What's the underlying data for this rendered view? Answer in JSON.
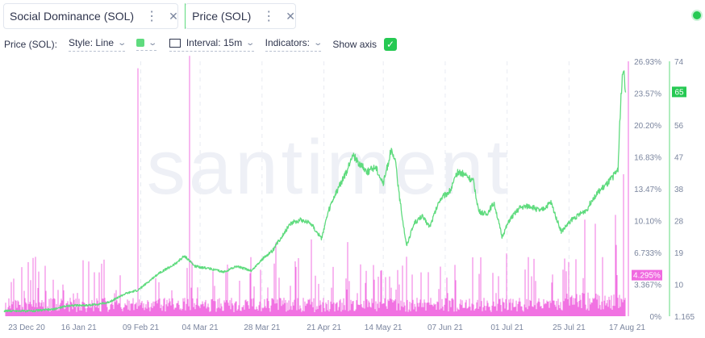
{
  "colors": {
    "social": "#f06ae0",
    "price": "#5fdb7e",
    "badge_social": "#f06ae0",
    "badge_price": "#26c953",
    "grid": "#e8ebf2",
    "text": "#2f354d",
    "muted": "#7a859e"
  },
  "metrics": [
    {
      "label": "Social Dominance (SOL)",
      "color": "#f06ae0",
      "menu_icon": "more-icon",
      "close_icon": "close-icon"
    },
    {
      "label": "Price (SOL)",
      "color": "#5fdb7e",
      "menu_icon": "more-icon",
      "close_icon": "close-icon"
    }
  ],
  "toolbar": {
    "metric_label": "Price (SOL):",
    "style_label": "Style: Line",
    "interval_label": "Interval: 15m",
    "indicators_label": "Indicators:",
    "show_axis_label": "Show axis",
    "show_axis_checked": true
  },
  "watermark": "santiment",
  "chart_data": {
    "type": "line",
    "x_ticks": [
      "23 Dec 20",
      "16 Jan 21",
      "09 Feb 21",
      "04 Mar 21",
      "28 Mar 21",
      "21 Apr 21",
      "14 May 21",
      "07 Jun 21",
      "01 Jul 21",
      "25 Jul 21",
      "17 Aug 21"
    ],
    "x_range": [
      "2020-12-18",
      "2021-08-17"
    ],
    "social_axis": {
      "ticks": [
        "0%",
        "3.367%",
        "6.733%",
        "10.10%",
        "13.47%",
        "16.83%",
        "20.20%",
        "23.57%",
        "26.93%"
      ],
      "ylim": [
        0,
        26.93
      ]
    },
    "price_axis": {
      "ticks": [
        "1.165",
        "10",
        "19",
        "28",
        "38",
        "47",
        "56",
        "65",
        "74"
      ],
      "ylim": [
        0,
        74
      ]
    },
    "current_values": {
      "social": "4.295%",
      "price": "65"
    },
    "series": [
      {
        "metric": "price",
        "points": [
          [
            "2020-12-18",
            1.6
          ],
          [
            "2020-12-28",
            1.5
          ],
          [
            "2021-01-06",
            2.0
          ],
          [
            "2021-01-12",
            3.1
          ],
          [
            "2021-01-20",
            3.2
          ],
          [
            "2021-01-27",
            3.9
          ],
          [
            "2021-02-03",
            6.5
          ],
          [
            "2021-02-08",
            7.6
          ],
          [
            "2021-02-12",
            10.0
          ],
          [
            "2021-02-16",
            12.5
          ],
          [
            "2021-02-22",
            15.0
          ],
          [
            "2021-02-26",
            17.5
          ],
          [
            "2021-03-02",
            14.5
          ],
          [
            "2021-03-08",
            13.8
          ],
          [
            "2021-03-13",
            12.8
          ],
          [
            "2021-03-18",
            14.5
          ],
          [
            "2021-03-24",
            13.2
          ],
          [
            "2021-03-28",
            16.5
          ],
          [
            "2021-04-01",
            19.0
          ],
          [
            "2021-04-05",
            23.5
          ],
          [
            "2021-04-08",
            27.0
          ],
          [
            "2021-04-12",
            28.0
          ],
          [
            "2021-04-16",
            27.0
          ],
          [
            "2021-04-20",
            22.5
          ],
          [
            "2021-04-23",
            31.0
          ],
          [
            "2021-04-27",
            38.0
          ],
          [
            "2021-04-30",
            42.0
          ],
          [
            "2021-05-02",
            47.0
          ],
          [
            "2021-05-05",
            44.0
          ],
          [
            "2021-05-08",
            42.0
          ],
          [
            "2021-05-11",
            43.5
          ],
          [
            "2021-05-14",
            38.5
          ],
          [
            "2021-05-17",
            48.0
          ],
          [
            "2021-05-19",
            44.0
          ],
          [
            "2021-05-20",
            36.0
          ],
          [
            "2021-05-23",
            20.5
          ],
          [
            "2021-05-26",
            27.0
          ],
          [
            "2021-05-29",
            29.0
          ],
          [
            "2021-06-01",
            26.0
          ],
          [
            "2021-06-05",
            34.0
          ],
          [
            "2021-06-09",
            36.5
          ],
          [
            "2021-06-12",
            42.0
          ],
          [
            "2021-06-15",
            41.0
          ],
          [
            "2021-06-18",
            39.0
          ],
          [
            "2021-06-20",
            30.5
          ],
          [
            "2021-06-23",
            29.5
          ],
          [
            "2021-06-26",
            33.0
          ],
          [
            "2021-06-29",
            23.0
          ],
          [
            "2021-07-02",
            28.0
          ],
          [
            "2021-07-06",
            31.5
          ],
          [
            "2021-07-10",
            32.0
          ],
          [
            "2021-07-14",
            30.5
          ],
          [
            "2021-07-18",
            33.0
          ],
          [
            "2021-07-22",
            24.5
          ],
          [
            "2021-07-26",
            28.0
          ],
          [
            "2021-07-29",
            29.5
          ],
          [
            "2021-08-01",
            31.0
          ],
          [
            "2021-08-03",
            34.0
          ],
          [
            "2021-08-06",
            36.5
          ],
          [
            "2021-08-09",
            38.5
          ],
          [
            "2021-08-12",
            41.5
          ],
          [
            "2021-08-13",
            43.0
          ],
          [
            "2021-08-14",
            62.0
          ],
          [
            "2021-08-15",
            72.0
          ],
          [
            "2021-08-16",
            65.0
          ]
        ]
      },
      {
        "metric": "social",
        "baseline_percent": 1.7,
        "peaks": [
          [
            "2021-02-08",
            26.2
          ],
          [
            "2021-02-28",
            27.5
          ],
          [
            "2021-08-12",
            10.7
          ],
          [
            "2021-08-15",
            15.0
          ],
          [
            "2021-08-16",
            4.3
          ]
        ]
      }
    ]
  }
}
